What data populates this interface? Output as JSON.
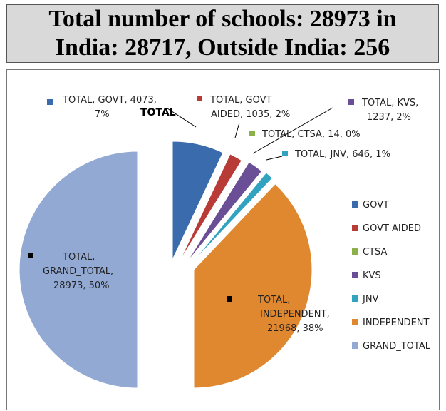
{
  "header": {
    "line1": "Total number of schools: 28973 in",
    "line2": "India: 28717, Outside India: 256"
  },
  "chart_data": {
    "type": "pie",
    "title": "TOTAL",
    "categories": [
      "GOVT",
      "GOVT AIDED",
      "CTSA",
      "KVS",
      "JNV",
      "INDEPENDENT",
      "GRAND_TOTAL"
    ],
    "values": [
      4073,
      1035,
      14,
      1237,
      646,
      21968,
      28973
    ],
    "percent_labels": [
      "7%",
      "2%",
      "0%",
      "2%",
      "1%",
      "38%",
      "50%"
    ],
    "data_labels": [
      [
        "TOTAL, GOVT, 4073,",
        "7%"
      ],
      [
        "TOTAL, GOVT",
        "AIDED, 1035, 2%"
      ],
      [
        "TOTAL, CTSA, 14, 0%"
      ],
      [
        "TOTAL, KVS,",
        "1237, 2%"
      ],
      [
        "TOTAL, JNV, 646, 1%"
      ],
      [
        "TOTAL,",
        "INDEPENDENT,",
        "21968, 38%"
      ],
      [
        "TOTAL,",
        "GRAND_TOTAL,",
        "28973, 50%"
      ]
    ],
    "colors": [
      "#3a6cad",
      "#b83b37",
      "#8cb04a",
      "#6b4f96",
      "#31a2bf",
      "#df8830",
      "#92a9d3"
    ],
    "legend_position": "right"
  }
}
